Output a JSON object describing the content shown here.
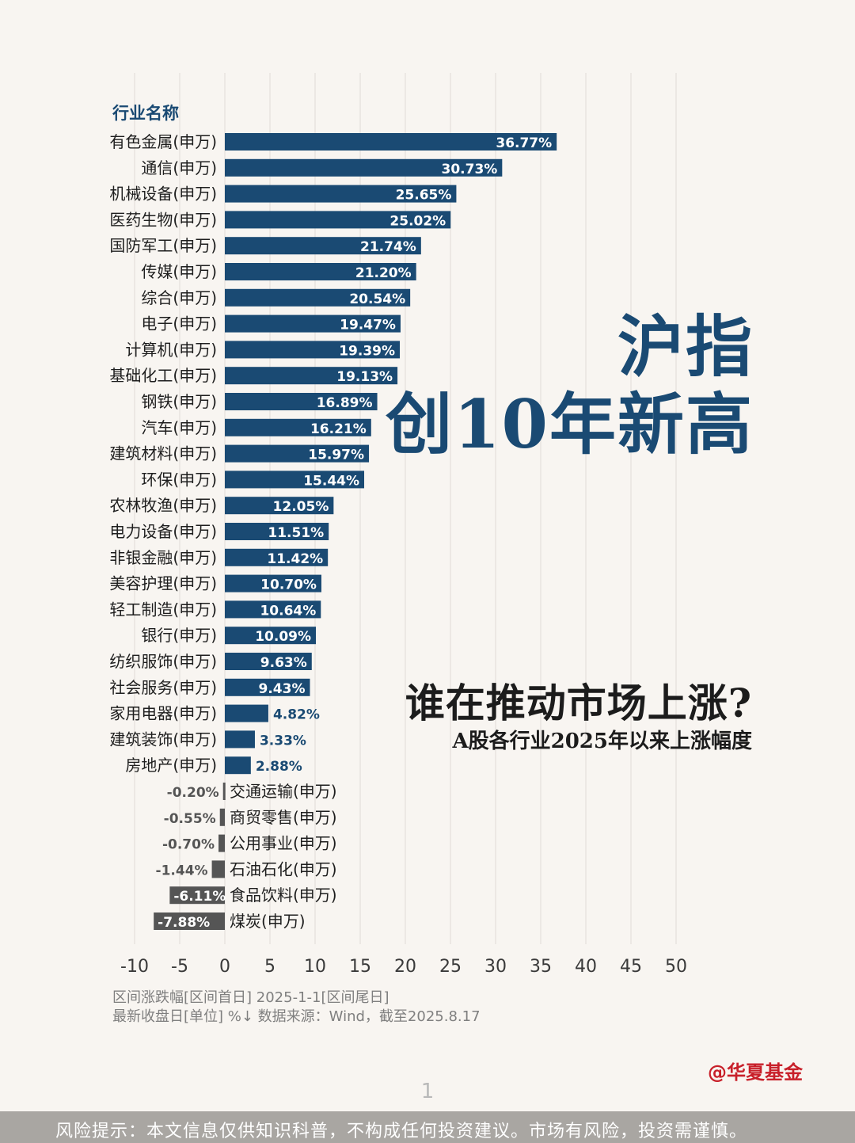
{
  "header": {
    "title_line1": "沪指",
    "title_line2": "创10年新高",
    "question": "谁在推动市场上涨?",
    "subtitle": "A股各行业2025年以来上涨幅度"
  },
  "chart_data": {
    "type": "bar",
    "orientation": "horizontal",
    "category_axis_label": "行业名称",
    "categories": [
      "有色金属(申万)",
      "通信(申万)",
      "机械设备(申万)",
      "医药生物(申万)",
      "国防军工(申万)",
      "传媒(申万)",
      "综合(申万)",
      "电子(申万)",
      "计算机(申万)",
      "基础化工(申万)",
      "钢铁(申万)",
      "汽车(申万)",
      "建筑材料(申万)",
      "环保(申万)",
      "农林牧渔(申万)",
      "电力设备(申万)",
      "非银金融(申万)",
      "美容护理(申万)",
      "轻工制造(申万)",
      "银行(申万)",
      "纺织服饰(申万)",
      "社会服务(申万)",
      "家用电器(申万)",
      "建筑装饰(申万)",
      "房地产(申万)",
      "交通运输(申万)",
      "商贸零售(申万)",
      "公用事业(申万)",
      "石油石化(申万)",
      "食品饮料(申万)",
      "煤炭(申万)"
    ],
    "values": [
      36.77,
      30.73,
      25.65,
      25.02,
      21.74,
      21.2,
      20.54,
      19.47,
      19.39,
      19.13,
      16.89,
      16.21,
      15.97,
      15.44,
      12.05,
      11.51,
      11.42,
      10.7,
      10.64,
      10.09,
      9.63,
      9.43,
      4.82,
      3.33,
      2.88,
      -0.2,
      -0.55,
      -0.7,
      -1.44,
      -6.11,
      -7.88
    ],
    "value_labels": [
      "36.77%",
      "30.73%",
      "25.65%",
      "25.02%",
      "21.74%",
      "21.20%",
      "20.54%",
      "19.47%",
      "19.39%",
      "19.13%",
      "16.89%",
      "16.21%",
      "15.97%",
      "15.44%",
      "12.05%",
      "11.51%",
      "11.42%",
      "10.70%",
      "10.64%",
      "10.09%",
      "9.63%",
      "9.43%",
      "4.82%",
      "3.33%",
      "2.88%",
      "-0.20%",
      "-0.55%",
      "-0.70%",
      "-1.44%",
      "-6.11%",
      "-7.88%"
    ],
    "xlim": [
      -10,
      50
    ],
    "x_ticks": [
      -10,
      -5,
      0,
      5,
      10,
      15,
      20,
      25,
      30,
      35,
      40,
      45,
      50
    ],
    "grid": true,
    "colors": {
      "positive": "#1a4a73",
      "negative": "#555555",
      "label_dark": "#1a4a73",
      "label_neg": "#555555"
    }
  },
  "notes": {
    "line1": "区间涨跌幅[区间首日] 2025-1-1[区间尾日]",
    "line2": "最新收盘日[单位] %↓ 数据来源：Wind，截至2025.8.17"
  },
  "brand": "@华夏基金",
  "page_number": "1",
  "risk_notice": "风险提示：本文信息仅供知识科普，不构成任何投资建议。市场有风险，投资需谨慎。"
}
